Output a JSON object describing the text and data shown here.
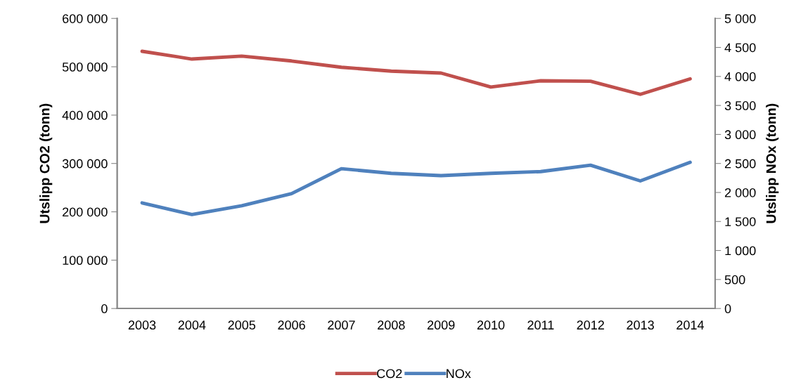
{
  "chart_data": {
    "type": "line",
    "categories": [
      "2003",
      "2004",
      "2005",
      "2006",
      "2007",
      "2008",
      "2009",
      "2010",
      "2011",
      "2012",
      "2013",
      "2014"
    ],
    "series": [
      {
        "name": "CO2",
        "color": "#c0504d",
        "values": [
          532000,
          516000,
          522000,
          512000,
          499000,
          491000,
          487000,
          458000,
          471000,
          470000,
          443000,
          475000
        ]
      },
      {
        "name": "NOx",
        "color": "#4f81bd",
        "axis": "y2",
        "values": [
          1820,
          1620,
          1770,
          1980,
          2410,
          2330,
          2290,
          2330,
          2360,
          2470,
          2200,
          2520
        ]
      }
    ],
    "ylabel": "Utslipp CO2 (tonn)",
    "y2label": "Utslipp NOx (tonn)",
    "ylim": [
      0,
      600000
    ],
    "yticks": [
      0,
      {
        "value": 100000,
        "label": "100 000"
      },
      {
        "value": 200000,
        "label": "200 000"
      },
      {
        "value": 300000,
        "label": "300 000"
      },
      {
        "value": 400000,
        "label": "400 000"
      },
      {
        "value": 500000,
        "label": "500 000"
      },
      {
        "value": 600000,
        "label": "600 000"
      }
    ],
    "y2lim": [
      0,
      5000
    ],
    "y2ticks": [
      0,
      500,
      {
        "value": 1000,
        "label": "1 000"
      },
      {
        "value": 1500,
        "label": "1 500"
      },
      {
        "value": 2000,
        "label": "2 000"
      },
      {
        "value": 2500,
        "label": "2 500"
      },
      {
        "value": 3000,
        "label": "3 000"
      },
      {
        "value": 3500,
        "label": "3 500"
      },
      {
        "value": 4000,
        "label": "4 000"
      },
      {
        "value": 4500,
        "label": "4 500"
      },
      {
        "value": 5000,
        "label": "5 000"
      }
    ],
    "grid": false,
    "legend": "bottom",
    "line_style": "solid",
    "marker": "none"
  }
}
